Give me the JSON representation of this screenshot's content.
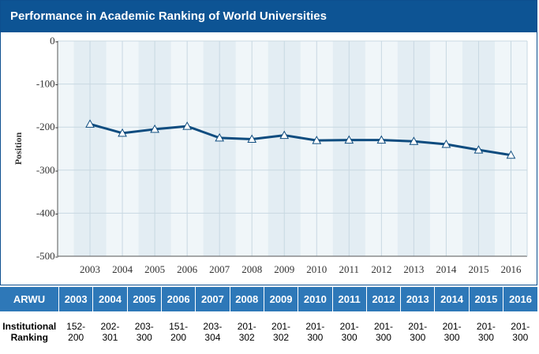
{
  "title": "Performance in Academic Ranking of World Universities",
  "chart_data": {
    "type": "line",
    "x": [
      "2003",
      "2004",
      "2005",
      "2006",
      "2007",
      "2008",
      "2009",
      "2010",
      "2011",
      "2012",
      "2013",
      "2014",
      "2015",
      "2016"
    ],
    "series": [
      {
        "values": [
          -193,
          -214,
          -205,
          -198,
          -225,
          -228,
          -219,
          -231,
          -230,
          -230,
          -233,
          -240,
          -253,
          -265
        ]
      }
    ],
    "ylabel": "Position",
    "yticks": [
      "0-",
      "-100-",
      "-200-",
      "-300-",
      "-400-",
      "-500-"
    ],
    "ylim": [
      -500,
      0
    ],
    "grid": true,
    "colors": {
      "line": "#0e4c7f",
      "marker": "#ffffff",
      "background": "#f0f6f9"
    }
  },
  "table": {
    "header": [
      "ARWU",
      "2003",
      "2004",
      "2005",
      "2006",
      "2007",
      "2008",
      "2009",
      "2010",
      "2011",
      "2012",
      "2013",
      "2014",
      "2015",
      "2016"
    ],
    "row_label": "Institutional Ranking",
    "row_label_lines": [
      "Institutional",
      "Ranking"
    ],
    "ranks": [
      [
        "152-",
        "200"
      ],
      [
        "202-",
        "301"
      ],
      [
        "203-",
        "300"
      ],
      [
        "151-",
        "200"
      ],
      [
        "203-",
        "304"
      ],
      [
        "201-",
        "302"
      ],
      [
        "201-",
        "302"
      ],
      [
        "201-",
        "300"
      ],
      [
        "201-",
        "300"
      ],
      [
        "201-",
        "300"
      ],
      [
        "201-",
        "300"
      ],
      [
        "201-",
        "300"
      ],
      [
        "201-",
        "300"
      ],
      [
        "201-",
        "300"
      ]
    ]
  }
}
